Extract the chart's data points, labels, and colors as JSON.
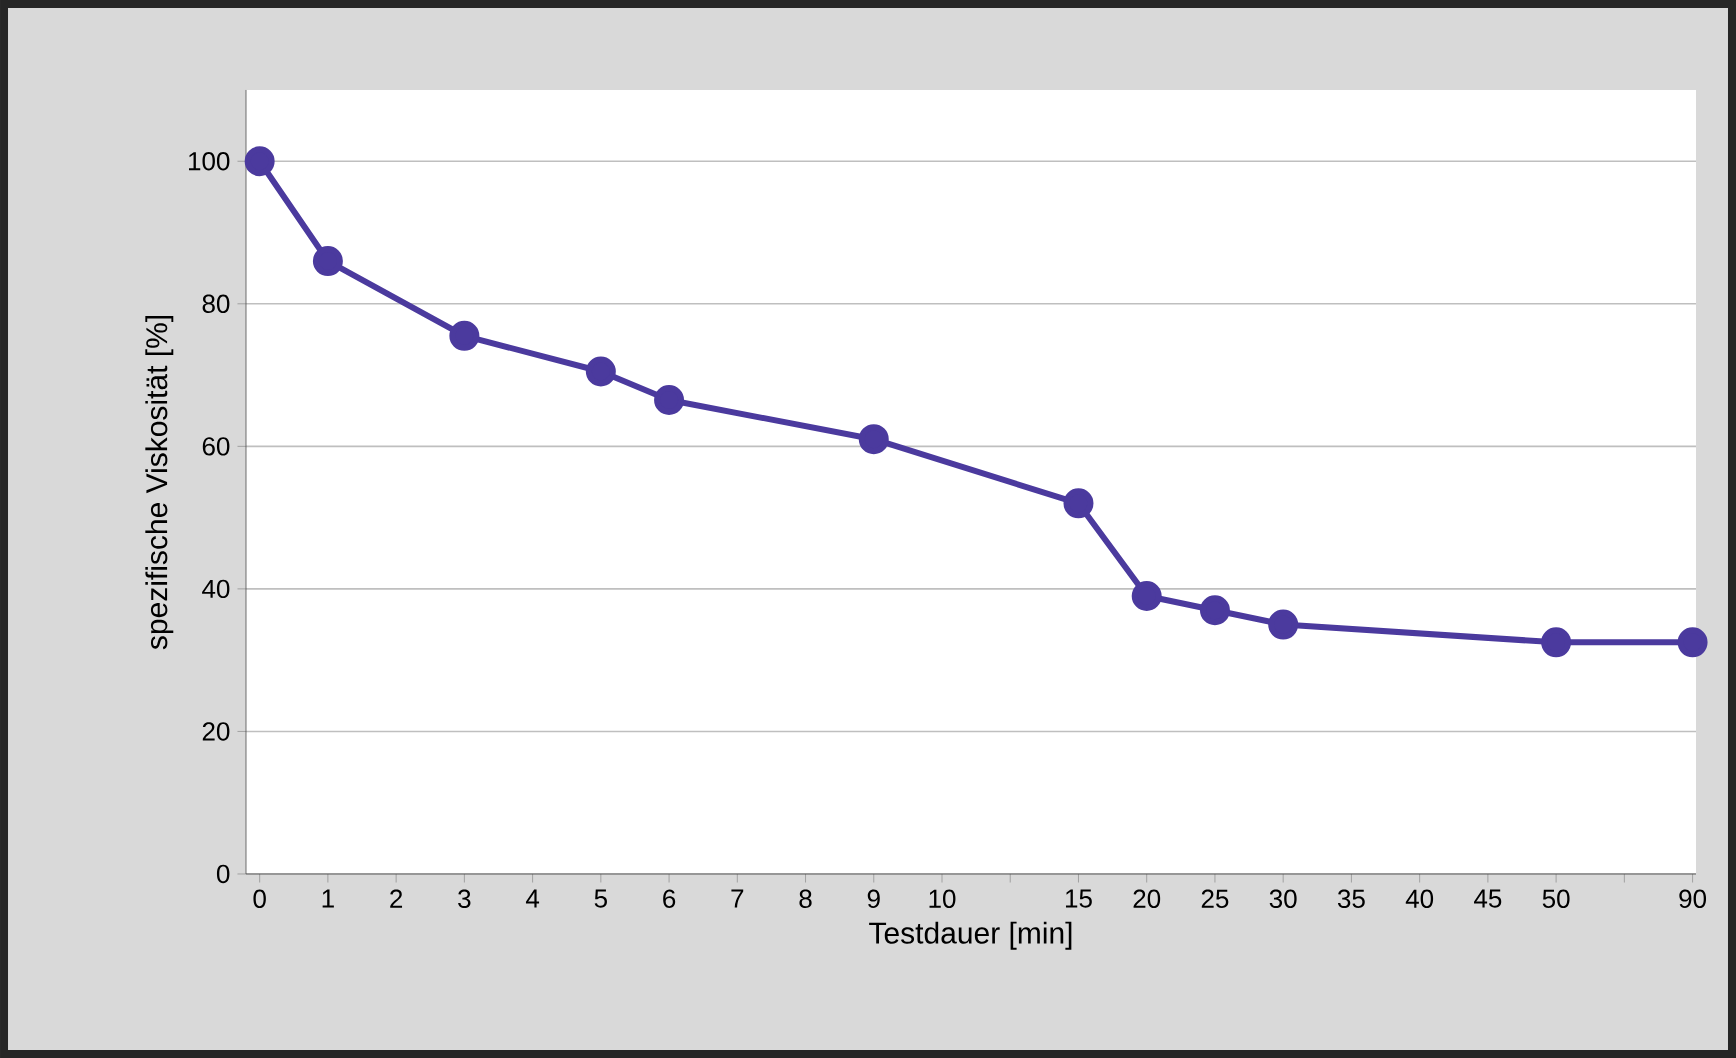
{
  "chart_data": {
    "type": "line",
    "xlabel": "Testdauer [min]",
    "ylabel": "spezifische Viskosität [%]",
    "categories": [
      "0",
      "1",
      "2",
      "3",
      "4",
      "5",
      "6",
      "7",
      "8",
      "9",
      "10",
      null,
      "15",
      "20",
      "25",
      "30",
      "35",
      "40",
      "45",
      "50",
      null,
      "90"
    ],
    "series": [
      {
        "color": "#4b3a9e",
        "values": [
          100,
          86,
          null,
          75.5,
          null,
          70.5,
          66.5,
          null,
          null,
          61,
          null,
          null,
          52,
          39,
          37,
          35,
          null,
          null,
          null,
          32.5,
          null,
          32.5
        ]
      }
    ],
    "ylim": [
      0,
      110
    ],
    "yticks": [
      0,
      20,
      40,
      60,
      80,
      100
    ],
    "grid": "y",
    "marker": "circle",
    "line_style": "solid"
  }
}
